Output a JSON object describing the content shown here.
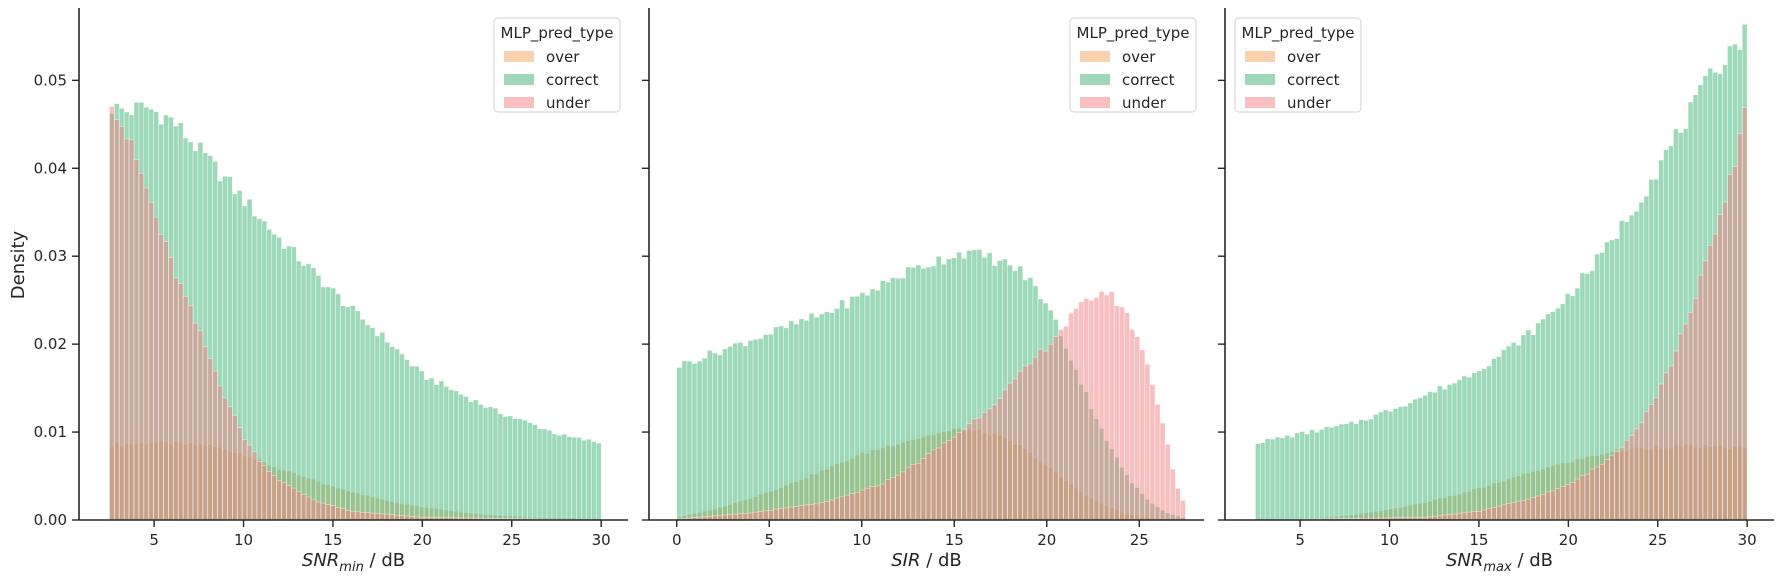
{
  "chart_data": [
    {
      "type": "histogram",
      "xlabel_base": "SNR",
      "xlabel_sub": "min",
      "xlabel_unit": " / dB",
      "ylabel": "Density",
      "xlim": [
        0.8,
        31.5
      ],
      "ylim": [
        0,
        0.058
      ],
      "xticks": [
        5,
        10,
        15,
        20,
        25,
        30
      ],
      "yticks": [
        0.0,
        0.01,
        0.02,
        0.03,
        0.04,
        0.05
      ],
      "bin_start": 2.5,
      "bin_end": 30,
      "bin_count": 100,
      "legend": {
        "title": "MLP_pred_type",
        "entries": [
          "over",
          "correct",
          "under"
        ],
        "placement": "upper right"
      },
      "series": [
        {
          "name": "over",
          "color": "#f4a460",
          "points": [
            [
              2.5,
              0.0085
            ],
            [
              5,
              0.0088
            ],
            [
              8,
              0.0085
            ],
            [
              10,
              0.0075
            ],
            [
              12,
              0.0058
            ],
            [
              15,
              0.0038
            ],
            [
              18,
              0.0022
            ],
            [
              20,
              0.0015
            ],
            [
              23,
              0.0007
            ],
            [
              26,
              0.0003
            ],
            [
              30,
              0.0001
            ]
          ]
        },
        {
          "name": "correct",
          "color": "#3cb371",
          "points": [
            [
              2.5,
              0.047
            ],
            [
              3.5,
              0.0465
            ],
            [
              4.5,
              0.047
            ],
            [
              6,
              0.0455
            ],
            [
              8,
              0.041
            ],
            [
              10,
              0.0365
            ],
            [
              12,
              0.032
            ],
            [
              14,
              0.028
            ],
            [
              16,
              0.024
            ],
            [
              18,
              0.0205
            ],
            [
              20,
              0.0165
            ],
            [
              22,
              0.0145
            ],
            [
              24,
              0.0125
            ],
            [
              26,
              0.011
            ],
            [
              28,
              0.0095
            ],
            [
              30,
              0.0088
            ]
          ]
        },
        {
          "name": "under",
          "color": "#f08080",
          "points": [
            [
              2.5,
              0.049
            ],
            [
              3,
              0.046
            ],
            [
              4,
              0.041
            ],
            [
              5,
              0.035
            ],
            [
              6,
              0.029
            ],
            [
              7,
              0.024
            ],
            [
              8,
              0.019
            ],
            [
              9,
              0.014
            ],
            [
              10,
              0.0095
            ],
            [
              11,
              0.0065
            ],
            [
              12,
              0.0045
            ],
            [
              14,
              0.0022
            ],
            [
              16,
              0.001
            ],
            [
              20,
              0.0003
            ],
            [
              30,
              0.0
            ]
          ]
        }
      ]
    },
    {
      "type": "histogram",
      "xlabel_base": "SIR",
      "xlabel_sub": "",
      "xlabel_unit": " / dB",
      "ylabel": "",
      "xlim": [
        -1.5,
        28.5
      ],
      "ylim": [
        0,
        0.058
      ],
      "xticks": [
        0,
        5,
        10,
        15,
        20,
        25
      ],
      "yticks": [
        0.0,
        0.01,
        0.02,
        0.03,
        0.04,
        0.05
      ],
      "bin_start": 0,
      "bin_end": 27.5,
      "bin_count": 100,
      "legend": {
        "title": "MLP_pred_type",
        "entries": [
          "over",
          "correct",
          "under"
        ],
        "placement": "upper right"
      },
      "series": [
        {
          "name": "over",
          "color": "#f4a460",
          "points": [
            [
              0,
              0.0003
            ],
            [
              2,
              0.0012
            ],
            [
              4,
              0.0025
            ],
            [
              6,
              0.004
            ],
            [
              8,
              0.0057
            ],
            [
              10,
              0.0075
            ],
            [
              12,
              0.0088
            ],
            [
              14,
              0.0098
            ],
            [
              15.5,
              0.0104
            ],
            [
              17,
              0.0098
            ],
            [
              18.5,
              0.0085
            ],
            [
              20,
              0.0062
            ],
            [
              21,
              0.0045
            ],
            [
              22,
              0.003
            ],
            [
              23,
              0.0018
            ],
            [
              24,
              0.0009
            ],
            [
              25,
              0.0004
            ],
            [
              26,
              0.0001
            ],
            [
              27.5,
              0.0
            ]
          ]
        },
        {
          "name": "correct",
          "color": "#3cb371",
          "points": [
            [
              0,
              0.0175
            ],
            [
              2,
              0.019
            ],
            [
              4,
              0.0205
            ],
            [
              6,
              0.022
            ],
            [
              8,
              0.0235
            ],
            [
              10,
              0.0255
            ],
            [
              12,
              0.0278
            ],
            [
              14,
              0.0295
            ],
            [
              15.5,
              0.0305
            ],
            [
              17,
              0.0298
            ],
            [
              18.5,
              0.0285
            ],
            [
              19.5,
              0.0262
            ],
            [
              20.5,
              0.0225
            ],
            [
              21.5,
              0.0175
            ],
            [
              22.5,
              0.0125
            ],
            [
              23.5,
              0.008
            ],
            [
              24.5,
              0.0045
            ],
            [
              25.5,
              0.0022
            ],
            [
              26.5,
              0.0008
            ],
            [
              27.5,
              0.0002
            ]
          ]
        },
        {
          "name": "under",
          "color": "#f08080",
          "points": [
            [
              0,
              0.0001
            ],
            [
              4,
              0.0008
            ],
            [
              8,
              0.002
            ],
            [
              11,
              0.004
            ],
            [
              13,
              0.0065
            ],
            [
              15,
              0.0095
            ],
            [
              17,
              0.013
            ],
            [
              19,
              0.0175
            ],
            [
              20.5,
              0.021
            ],
            [
              21.5,
              0.0235
            ],
            [
              22.5,
              0.0255
            ],
            [
              23.2,
              0.026
            ],
            [
              24,
              0.0245
            ],
            [
              25,
              0.0205
            ],
            [
              25.8,
              0.015
            ],
            [
              26.5,
              0.009
            ],
            [
              27,
              0.004
            ],
            [
              27.5,
              0.0015
            ]
          ]
        }
      ]
    },
    {
      "type": "histogram",
      "xlabel_base": "SNR",
      "xlabel_sub": "max",
      "xlabel_unit": " / dB",
      "ylabel": "",
      "xlim": [
        0.8,
        31.5
      ],
      "ylim": [
        0,
        0.058
      ],
      "xticks": [
        5,
        10,
        15,
        20,
        25,
        30
      ],
      "yticks": [
        0.0,
        0.01,
        0.02,
        0.03,
        0.04,
        0.05
      ],
      "bin_start": 2.5,
      "bin_end": 30,
      "bin_count": 100,
      "legend": {
        "title": "MLP_pred_type",
        "entries": [
          "over",
          "correct",
          "under"
        ],
        "placement": "upper left"
      },
      "series": [
        {
          "name": "over",
          "color": "#f4a460",
          "points": [
            [
              2.5,
              0.0
            ],
            [
              6,
              0.0002
            ],
            [
              8,
              0.0006
            ],
            [
              10,
              0.0012
            ],
            [
              12,
              0.002
            ],
            [
              14,
              0.003
            ],
            [
              16,
              0.0042
            ],
            [
              18,
              0.0055
            ],
            [
              20,
              0.0066
            ],
            [
              22,
              0.0076
            ],
            [
              24,
              0.0082
            ],
            [
              26,
              0.0084
            ],
            [
              28,
              0.0083
            ],
            [
              30,
              0.0082
            ]
          ]
        },
        {
          "name": "correct",
          "color": "#3cb371",
          "points": [
            [
              2.5,
              0.0088
            ],
            [
              5,
              0.0098
            ],
            [
              8,
              0.011
            ],
            [
              10,
              0.0125
            ],
            [
              12,
              0.0142
            ],
            [
              14,
              0.016
            ],
            [
              16,
              0.0185
            ],
            [
              18,
              0.0215
            ],
            [
              20,
              0.0255
            ],
            [
              22,
              0.0305
            ],
            [
              24,
              0.0365
            ],
            [
              26,
              0.0435
            ],
            [
              28,
              0.0505
            ],
            [
              29,
              0.0535
            ],
            [
              30,
              0.0555
            ]
          ]
        },
        {
          "name": "under",
          "color": "#f08080",
          "points": [
            [
              2.5,
              0.0
            ],
            [
              12,
              0.0003
            ],
            [
              15,
              0.001
            ],
            [
              18,
              0.0025
            ],
            [
              20,
              0.004
            ],
            [
              22,
              0.0065
            ],
            [
              23,
              0.0085
            ],
            [
              24,
              0.011
            ],
            [
              25,
              0.0145
            ],
            [
              26,
              0.019
            ],
            [
              27,
              0.025
            ],
            [
              28,
              0.031
            ],
            [
              29,
              0.038
            ],
            [
              30,
              0.048
            ]
          ]
        }
      ]
    }
  ]
}
